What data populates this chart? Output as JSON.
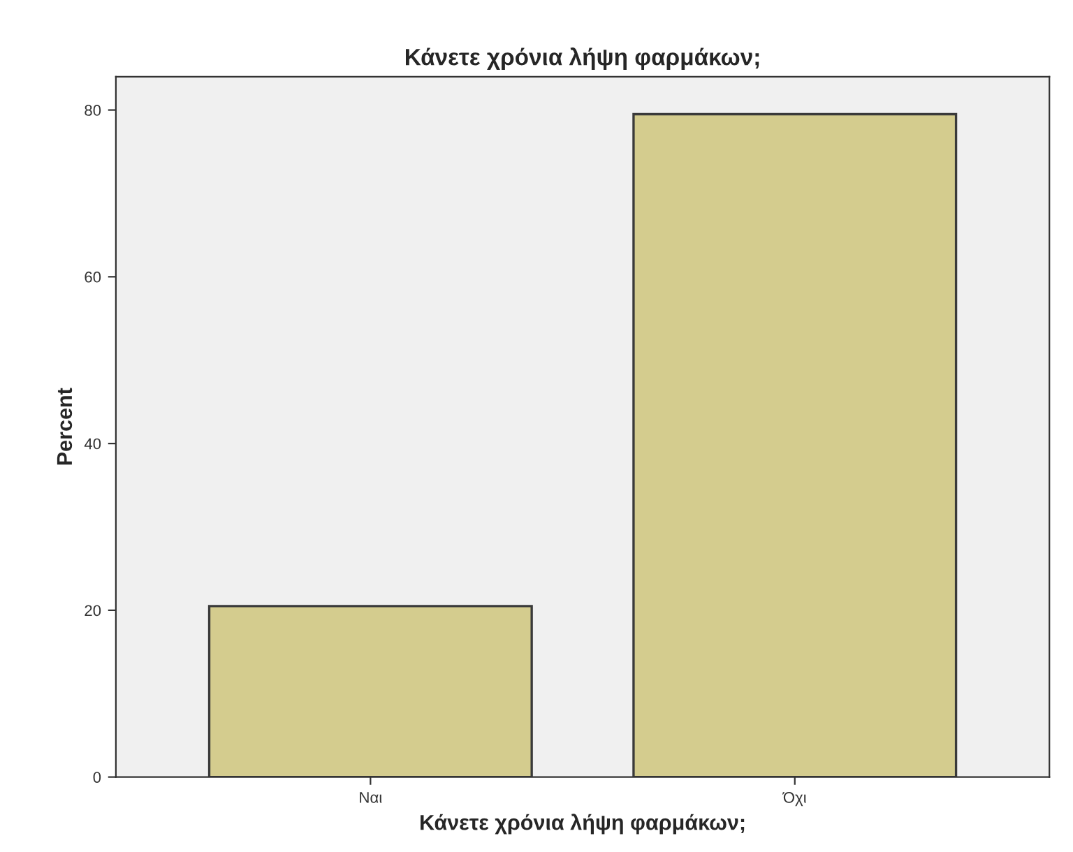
{
  "chart_data": {
    "type": "bar",
    "title": "Κάνετε χρόνια λήψη φαρμάκων;",
    "xlabel": "Κάνετε χρόνια λήψη φαρμάκων;",
    "ylabel": "Percent",
    "categories": [
      "Ναι",
      "Όχι"
    ],
    "series": [
      {
        "color": "#d4cc8e",
        "values": [
          20.5,
          79.5
        ]
      }
    ],
    "ylim": [
      0,
      84
    ],
    "yticks": [
      0,
      20,
      40,
      60,
      80
    ],
    "grid": false,
    "legend": false
  }
}
